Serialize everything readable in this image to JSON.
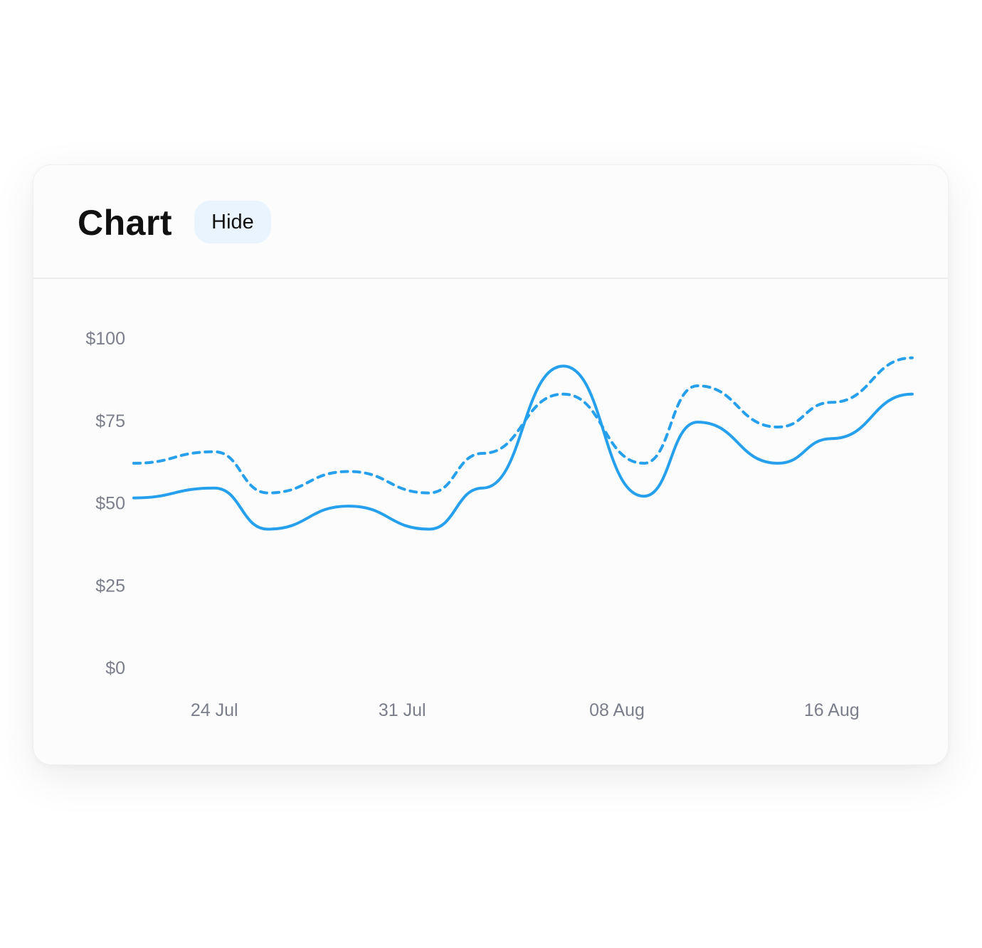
{
  "header": {
    "title": "Chart",
    "hide_label": "Hide"
  },
  "colors": {
    "line": "#26a0ec",
    "tick_text": "#7b7f8c"
  },
  "chart_data": {
    "type": "line",
    "title": "",
    "xlabel": "",
    "ylabel": "",
    "ylim": [
      0,
      100
    ],
    "y_ticks": [
      "$0",
      "$25",
      "$50",
      "$75",
      "$100"
    ],
    "y_tick_values": [
      0,
      25,
      50,
      75,
      100
    ],
    "x_ticks": [
      "24 Jul",
      "31 Jul",
      "08 Aug",
      "16 Aug"
    ],
    "x_tick_values": [
      "2023-07-24",
      "2023-07-31",
      "2023-08-08",
      "2023-08-16"
    ],
    "x_range": [
      "2023-07-21",
      "2023-08-19"
    ],
    "grid": false,
    "legend": "none",
    "series": [
      {
        "style": "solid",
        "points": [
          [
            "2023-07-21",
            51.5
          ],
          [
            "2023-07-24",
            54.5
          ],
          [
            "2023-07-26",
            42
          ],
          [
            "2023-07-29",
            49
          ],
          [
            "2023-08-01",
            42
          ],
          [
            "2023-08-03",
            54.5
          ],
          [
            "2023-08-06",
            91.5
          ],
          [
            "2023-08-09",
            52
          ],
          [
            "2023-08-11",
            74.5
          ],
          [
            "2023-08-14",
            62
          ],
          [
            "2023-08-16",
            69.5
          ],
          [
            "2023-08-19",
            83
          ]
        ]
      },
      {
        "style": "dashed",
        "points": [
          [
            "2023-07-21",
            62
          ],
          [
            "2023-07-24",
            65.5
          ],
          [
            "2023-07-26",
            53
          ],
          [
            "2023-07-29",
            59.5
          ],
          [
            "2023-08-01",
            53
          ],
          [
            "2023-08-03",
            65
          ],
          [
            "2023-08-06",
            83
          ],
          [
            "2023-08-09",
            62
          ],
          [
            "2023-08-11",
            85.5
          ],
          [
            "2023-08-14",
            73
          ],
          [
            "2023-08-16",
            80.5
          ],
          [
            "2023-08-19",
            94
          ]
        ]
      }
    ]
  }
}
